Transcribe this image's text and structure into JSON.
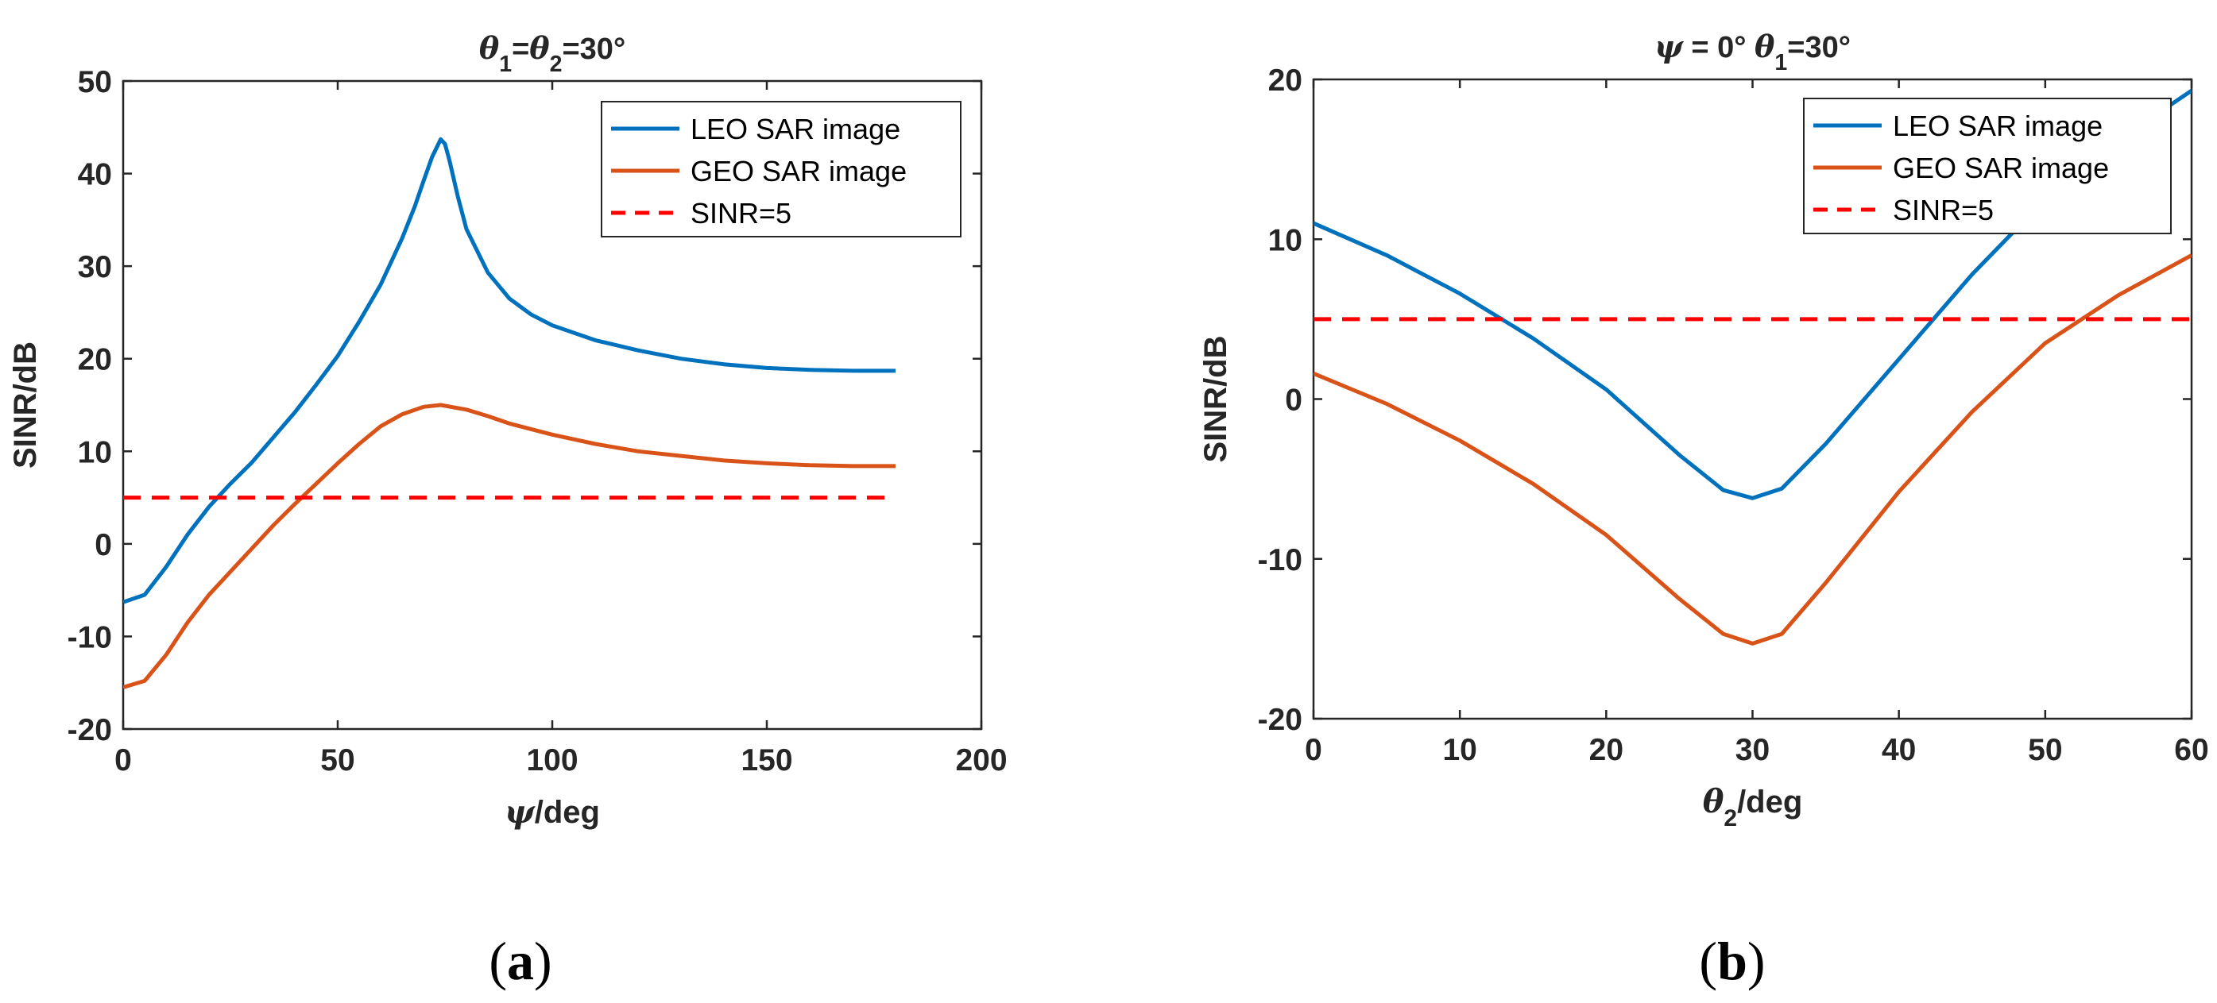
{
  "chart_data": [
    {
      "type": "line",
      "panel_label": "a",
      "title": "θ1=θ2=30°",
      "xlabel": "ψ/deg",
      "ylabel": "SINR/dB",
      "xlim": [
        0,
        200
      ],
      "ylim": [
        -20,
        50
      ],
      "xticks": [
        0,
        50,
        100,
        150,
        200
      ],
      "yticks": [
        -20,
        -10,
        0,
        10,
        20,
        30,
        40,
        50
      ],
      "grid": false,
      "legend_position": "top-right",
      "series": [
        {
          "name": "LEO SAR image",
          "color": "#0072BD",
          "x": [
            0,
            5,
            10,
            15,
            20,
            25,
            30,
            35,
            40,
            45,
            50,
            55,
            60,
            65,
            68,
            70,
            72,
            74,
            75,
            76,
            78,
            80,
            85,
            90,
            95,
            100,
            110,
            120,
            130,
            140,
            150,
            160,
            170,
            180
          ],
          "y": [
            -6.3,
            -5.5,
            -2.5,
            1.0,
            4.0,
            6.5,
            8.8,
            11.5,
            14.2,
            17.2,
            20.3,
            24.0,
            28.0,
            33.0,
            36.5,
            39.2,
            41.8,
            43.7,
            43.2,
            41.5,
            37.5,
            34.0,
            29.3,
            26.5,
            24.8,
            23.6,
            22.0,
            20.9,
            20.0,
            19.4,
            19.0,
            18.8,
            18.7,
            18.7
          ]
        },
        {
          "name": "GEO SAR image",
          "color": "#D95319",
          "x": [
            0,
            5,
            10,
            15,
            20,
            25,
            30,
            35,
            40,
            45,
            50,
            55,
            60,
            65,
            70,
            74,
            80,
            85,
            90,
            100,
            110,
            120,
            130,
            140,
            150,
            160,
            170,
            180
          ],
          "y": [
            -15.5,
            -14.8,
            -12.0,
            -8.5,
            -5.5,
            -3.0,
            -0.5,
            2.0,
            4.3,
            6.5,
            8.7,
            10.8,
            12.7,
            14.0,
            14.8,
            15.0,
            14.5,
            13.8,
            13.0,
            11.8,
            10.8,
            10.0,
            9.5,
            9.0,
            8.7,
            8.5,
            8.4,
            8.4
          ]
        },
        {
          "name": "SINR=5",
          "color": "#FF0000",
          "dashed": true,
          "x": [
            0,
            180
          ],
          "y": [
            5,
            5
          ]
        }
      ]
    },
    {
      "type": "line",
      "panel_label": "b",
      "title": "ψ = 0° θ1=30°",
      "xlabel": "θ2/deg",
      "ylabel": "SINR/dB",
      "xlim": [
        0,
        60
      ],
      "ylim": [
        -20,
        20
      ],
      "xticks": [
        0,
        10,
        20,
        30,
        40,
        50,
        60
      ],
      "yticks": [
        -20,
        -10,
        0,
        10,
        20
      ],
      "grid": false,
      "legend_position": "top-right",
      "series": [
        {
          "name": "LEO SAR image",
          "color": "#0072BD",
          "x": [
            0,
            5,
            10,
            15,
            20,
            25,
            28,
            30,
            32,
            35,
            40,
            45,
            50,
            55,
            60
          ],
          "y": [
            11.0,
            9.0,
            6.6,
            3.8,
            0.6,
            -3.5,
            -5.7,
            -6.2,
            -5.6,
            -2.8,
            2.5,
            7.8,
            12.5,
            16.2,
            19.3
          ]
        },
        {
          "name": "GEO SAR image",
          "color": "#D95319",
          "x": [
            0,
            5,
            10,
            15,
            20,
            25,
            28,
            30,
            32,
            35,
            40,
            45,
            50,
            55,
            60
          ],
          "y": [
            1.6,
            -0.3,
            -2.6,
            -5.3,
            -8.5,
            -12.5,
            -14.7,
            -15.3,
            -14.7,
            -11.5,
            -5.8,
            -0.8,
            3.5,
            6.5,
            9.0
          ]
        },
        {
          "name": "SINR=5",
          "color": "#FF0000",
          "dashed": true,
          "x": [
            0,
            60
          ],
          "y": [
            5,
            5
          ]
        }
      ]
    }
  ]
}
